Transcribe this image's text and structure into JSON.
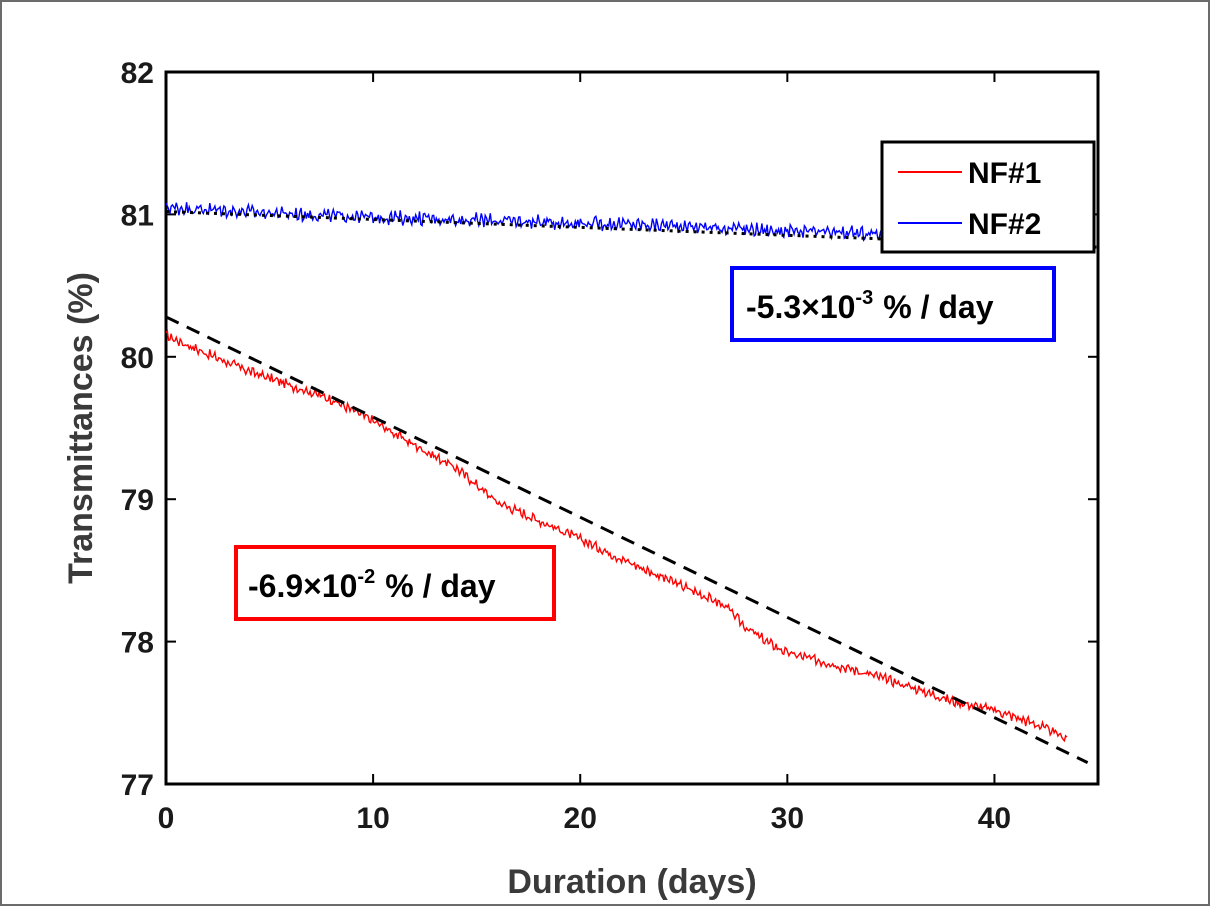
{
  "chart_data": {
    "type": "line",
    "xlabel": "Duration (days)",
    "ylabel": "Transmittances (%)",
    "xlim": [
      0,
      45
    ],
    "ylim": [
      77,
      82
    ],
    "x_ticks": [
      0,
      10,
      20,
      30,
      40
    ],
    "y_ticks": [
      77,
      78,
      79,
      80,
      81,
      82
    ],
    "legend_position": "top-right",
    "series": [
      {
        "name": "NF#1",
        "color": "#ff0000",
        "x": [
          0,
          2,
          4,
          6,
          8,
          10,
          12,
          14,
          15,
          16,
          18,
          20,
          22,
          24,
          26,
          27,
          28,
          29,
          30,
          32,
          34,
          36,
          38,
          40,
          42,
          43.5
        ],
        "y": [
          80.15,
          80.02,
          79.9,
          79.8,
          79.7,
          79.55,
          79.38,
          79.22,
          79.1,
          78.98,
          78.85,
          78.72,
          78.58,
          78.45,
          78.32,
          78.25,
          78.1,
          78.0,
          77.92,
          77.85,
          77.77,
          77.68,
          77.58,
          77.52,
          77.42,
          77.32
        ]
      },
      {
        "name": "NF#2",
        "color": "#0000ff",
        "x": [
          0,
          5,
          10,
          15,
          20,
          25,
          30,
          35,
          40,
          43.5
        ],
        "y": [
          81.05,
          81.01,
          80.98,
          80.96,
          80.94,
          80.92,
          80.88,
          80.86,
          80.83,
          80.82
        ]
      }
    ],
    "fit_lines": [
      {
        "style": "dashed",
        "color": "#000000",
        "x": [
          0,
          44.5
        ],
        "y": [
          80.28,
          77.15
        ]
      },
      {
        "style": "dotted",
        "color": "#000000",
        "x": [
          0,
          45
        ],
        "y": [
          81.02,
          80.77
        ]
      }
    ],
    "annotations": [
      {
        "color": "#0000ff",
        "mantissa": "-5.3×10",
        "exponent": "-3",
        "unit": "% / day"
      },
      {
        "color": "#ff0000",
        "mantissa": "-6.9×10",
        "exponent": "-2",
        "unit": "% / day"
      }
    ]
  }
}
